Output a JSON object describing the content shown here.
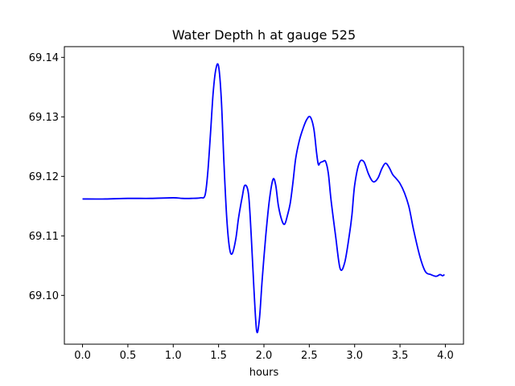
{
  "chart_data": {
    "type": "line",
    "title": "Water Depth h at gauge 525",
    "xlabel": "hours",
    "ylabel": "",
    "xlim": [
      -0.2,
      4.2
    ],
    "ylim": [
      69.0918,
      69.1418
    ],
    "xticks": [
      0.0,
      0.5,
      1.0,
      1.5,
      2.0,
      2.5,
      3.0,
      3.5,
      4.0
    ],
    "xtick_labels": [
      "0.0",
      "0.5",
      "1.0",
      "1.5",
      "2.0",
      "2.5",
      "3.0",
      "3.5",
      "4.0"
    ],
    "yticks": [
      69.1,
      69.11,
      69.12,
      69.13,
      69.14
    ],
    "ytick_labels": [
      "69.10",
      "69.11",
      "69.12",
      "69.13",
      "69.14"
    ],
    "grid": false,
    "series": [
      {
        "color": "#0000ff",
        "x": [
          0.0,
          0.25,
          0.5,
          0.75,
          1.0,
          1.1,
          1.2,
          1.3,
          1.35,
          1.38,
          1.41,
          1.44,
          1.47,
          1.5,
          1.53,
          1.56,
          1.59,
          1.62,
          1.65,
          1.69,
          1.72,
          1.76,
          1.79,
          1.83,
          1.86,
          1.89,
          1.92,
          1.95,
          1.98,
          2.02,
          2.06,
          2.1,
          2.13,
          2.16,
          2.2,
          2.23,
          2.26,
          2.29,
          2.32,
          2.35,
          2.39,
          2.43,
          2.47,
          2.51,
          2.55,
          2.58,
          2.6,
          2.62,
          2.65,
          2.68,
          2.71,
          2.74,
          2.79,
          2.84,
          2.89,
          2.94,
          2.97,
          3.0,
          3.05,
          3.1,
          3.15,
          3.19,
          3.22,
          3.26,
          3.3,
          3.34,
          3.38,
          3.42,
          3.46,
          3.5,
          3.55,
          3.6,
          3.65,
          3.72,
          3.78,
          3.84,
          3.9,
          3.94,
          3.97,
          3.99
        ],
        "y": [
          69.1162,
          69.1162,
          69.1163,
          69.1163,
          69.1164,
          69.1163,
          69.1163,
          69.1164,
          69.1168,
          69.1205,
          69.127,
          69.134,
          69.138,
          69.1385,
          69.133,
          69.122,
          69.113,
          69.108,
          69.107,
          69.1095,
          69.113,
          69.1165,
          69.1185,
          69.117,
          69.11,
          69.101,
          69.094,
          69.096,
          69.1025,
          69.11,
          69.116,
          69.1195,
          69.1185,
          69.115,
          69.1125,
          69.112,
          69.1135,
          69.1155,
          69.119,
          69.123,
          69.126,
          69.128,
          69.1295,
          69.13,
          69.128,
          69.124,
          69.122,
          69.1223,
          69.1225,
          69.1225,
          69.1205,
          69.116,
          69.11,
          69.1045,
          69.1055,
          69.11,
          69.1135,
          69.1185,
          69.1222,
          69.1225,
          69.1205,
          69.1193,
          69.1191,
          69.1198,
          69.1213,
          69.1222,
          69.1215,
          69.1203,
          69.1196,
          69.1188,
          69.1172,
          69.1148,
          69.111,
          69.1065,
          69.104,
          69.1035,
          69.1032,
          69.1035,
          69.1033,
          69.1035
        ]
      }
    ]
  }
}
